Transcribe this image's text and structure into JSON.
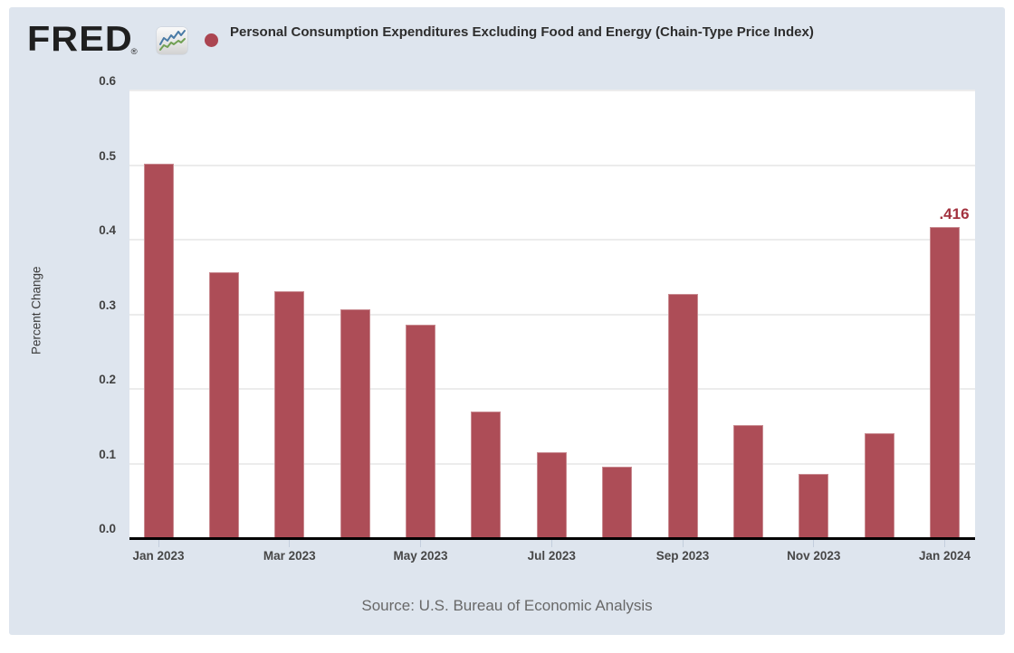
{
  "header": {
    "brand": "FRED",
    "registered_mark": "®",
    "series_title": "Personal Consumption Expenditures Excluding Food and Energy (Chain-Type Price Index)"
  },
  "chart_data": {
    "type": "bar",
    "title": "Personal Consumption Expenditures Excluding Food and Energy (Chain-Type Price Index)",
    "ylabel": "Percent Change",
    "xlabel": "",
    "ylim": [
      0.0,
      0.6
    ],
    "yticks": [
      0.0,
      0.1,
      0.2,
      0.3,
      0.4,
      0.5,
      0.6
    ],
    "ytick_labels": [
      "0.0",
      "0.1",
      "0.2",
      "0.3",
      "0.4",
      "0.5",
      "0.6"
    ],
    "categories": [
      "Jan 2023",
      "Feb 2023",
      "Mar 2023",
      "Apr 2023",
      "May 2023",
      "Jun 2023",
      "Jul 2023",
      "Aug 2023",
      "Sep 2023",
      "Oct 2023",
      "Nov 2023",
      "Dec 2023",
      "Jan 2024"
    ],
    "values": [
      0.501,
      0.355,
      0.33,
      0.305,
      0.285,
      0.168,
      0.114,
      0.094,
      0.326,
      0.15,
      0.085,
      0.14,
      0.416
    ],
    "x_axis_labels": [
      "Jan 2023",
      "Mar 2023",
      "May 2023",
      "Jul 2023",
      "Sep 2023",
      "Nov 2023",
      "Jan 2024"
    ],
    "x_axis_label_indices": [
      0,
      2,
      4,
      6,
      8,
      10,
      12
    ],
    "grid": true,
    "legend_position": "top",
    "last_value_label": ".416",
    "colors": {
      "bar": "#ad4d57",
      "legend_marker": "#ab4551",
      "last_value_label": "#a3323f",
      "background": "#dee5ee",
      "plot_background": "#ffffff"
    }
  },
  "footer": {
    "source": "Source: U.S. Bureau of Economic Analysis"
  }
}
